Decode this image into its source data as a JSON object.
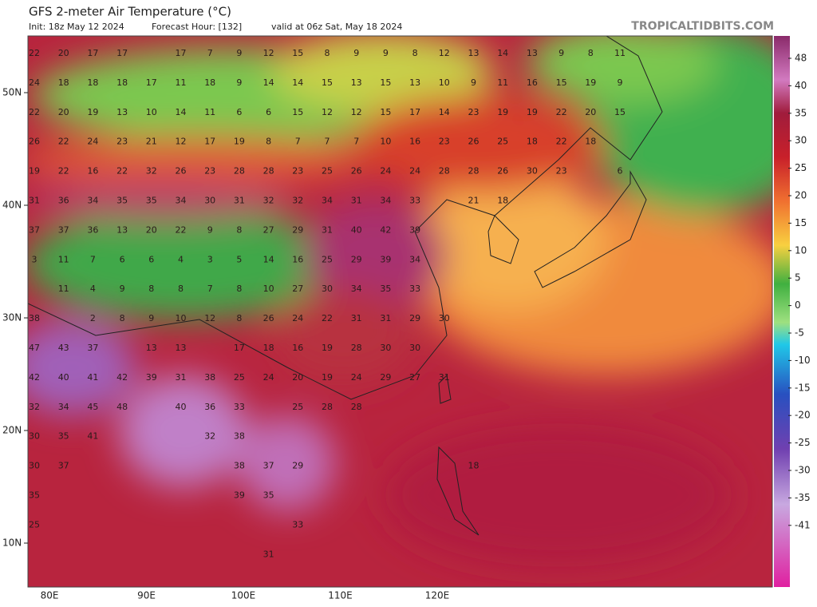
{
  "header": {
    "title": "GFS 2-meter Air Temperature (°C)",
    "init": "Init: 18z May 12 2024",
    "forecast_hour": "Forecast Hour: [132]",
    "valid": "valid at 06z Sat, May 18 2024",
    "brand": "TROPICALTIDBITS.COM"
  },
  "map": {
    "lat_labels": [
      "50N",
      "40N",
      "30N",
      "20N",
      "10N"
    ],
    "lon_labels": [
      "80E",
      "90E",
      "100E",
      "110E",
      "120E"
    ],
    "temperature_rows": [
      [
        22,
        20,
        17,
        17,
        null,
        17,
        7,
        9,
        12,
        15,
        8,
        9,
        9,
        8,
        12,
        13,
        14,
        13,
        9,
        8,
        11
      ],
      [
        24,
        18,
        18,
        18,
        17,
        11,
        18,
        9,
        14,
        14,
        15,
        13,
        15,
        13,
        10,
        9,
        11,
        16,
        15,
        19,
        9
      ],
      [
        22,
        20,
        19,
        13,
        10,
        14,
        11,
        6,
        6,
        15,
        12,
        12,
        15,
        17,
        14,
        23,
        19,
        19,
        22,
        20,
        15
      ],
      [
        26,
        22,
        24,
        23,
        21,
        12,
        17,
        19,
        8,
        7,
        7,
        7,
        10,
        16,
        23,
        26,
        25,
        18,
        22,
        18
      ],
      [
        19,
        22,
        16,
        22,
        32,
        26,
        23,
        28,
        28,
        23,
        25,
        26,
        24,
        24,
        28,
        28,
        26,
        30,
        23,
        null,
        6
      ],
      [
        31,
        36,
        34,
        35,
        35,
        34,
        30,
        31,
        32,
        32,
        34,
        31,
        34,
        33,
        null,
        21,
        18
      ],
      [
        37,
        37,
        36,
        13,
        20,
        22,
        9,
        8,
        27,
        29,
        31,
        40,
        42,
        39
      ],
      [
        3,
        11,
        7,
        6,
        6,
        4,
        3,
        5,
        14,
        16,
        25,
        29,
        39,
        34
      ],
      [
        null,
        11,
        4,
        9,
        8,
        8,
        7,
        8,
        10,
        27,
        30,
        34,
        35,
        33
      ],
      [
        38,
        null,
        2,
        8,
        9,
        10,
        12,
        8,
        26,
        24,
        22,
        31,
        31,
        29,
        30
      ],
      [
        47,
        43,
        37,
        null,
        13,
        13,
        null,
        17,
        18,
        16,
        19,
        28,
        30,
        30
      ],
      [
        42,
        40,
        41,
        42,
        39,
        31,
        38,
        25,
        24,
        20,
        19,
        24,
        29,
        27,
        31
      ],
      [
        32,
        34,
        45,
        48,
        null,
        40,
        36,
        33,
        null,
        25,
        28,
        28
      ],
      [
        30,
        35,
        41,
        null,
        null,
        null,
        32,
        38
      ],
      [
        30,
        37,
        null,
        null,
        null,
        null,
        null,
        38,
        37,
        29,
        null,
        null,
        null,
        null,
        null,
        18
      ],
      [
        35,
        null,
        null,
        null,
        null,
        null,
        null,
        39,
        35
      ],
      [
        25,
        null,
        null,
        null,
        null,
        null,
        null,
        null,
        null,
        33
      ],
      [
        null,
        null,
        null,
        null,
        null,
        null,
        null,
        null,
        31
      ]
    ]
  },
  "colorbar": {
    "ticks": [
      48,
      40,
      35,
      30,
      25,
      20,
      15,
      10,
      5,
      0,
      -5,
      -10,
      -15,
      -20,
      -25,
      -30,
      -35,
      -41
    ]
  }
}
